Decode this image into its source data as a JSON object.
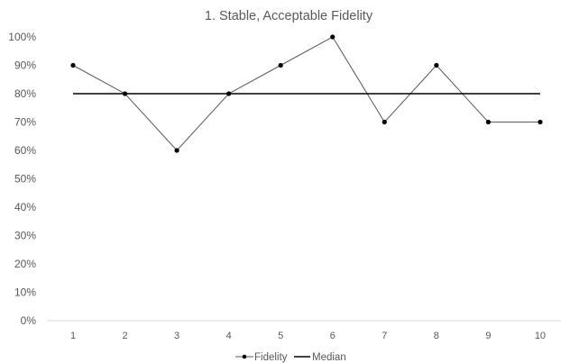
{
  "chart_data": {
    "type": "line",
    "title": "1. Stable, Acceptable Fidelity",
    "xlabel": "",
    "ylabel": "",
    "x": [
      "1",
      "2",
      "3",
      "4",
      "5",
      "6",
      "7",
      "8",
      "9",
      "10"
    ],
    "ylim": [
      0,
      100
    ],
    "y_ticks": [
      "0%",
      "10%",
      "20%",
      "30%",
      "40%",
      "50%",
      "60%",
      "70%",
      "80%",
      "90%",
      "100%"
    ],
    "grid": false,
    "legend_position": "bottom",
    "series": [
      {
        "name": "Fidelity",
        "values": [
          90,
          80,
          60,
          80,
          90,
          100,
          70,
          90,
          70,
          70
        ],
        "color": "#595959",
        "marker": "circle"
      },
      {
        "name": "Median",
        "values": [
          80,
          80,
          80,
          80,
          80,
          80,
          80,
          80,
          80,
          80
        ],
        "color": "#000000",
        "marker": "none"
      }
    ]
  }
}
